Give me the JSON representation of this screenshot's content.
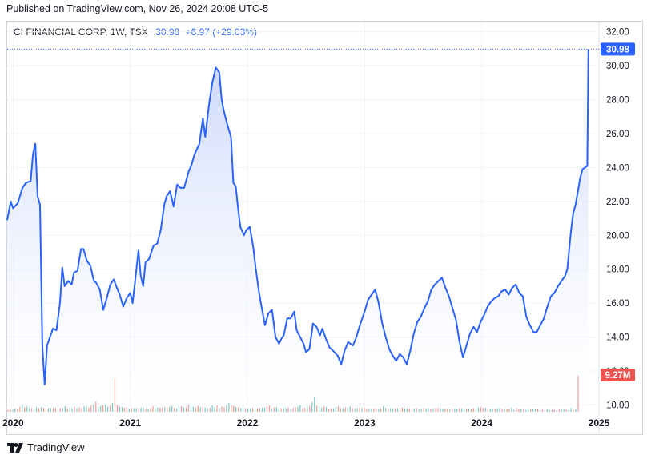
{
  "header": {
    "published": "Published on TradingView.com, Nov 26, 2024 20:08 UTC-5"
  },
  "legend": {
    "symbol": "CI FINANCIAL CORP, 1W, TSX",
    "price": "30.98",
    "change": "+6.97 (+29.03%)"
  },
  "footer": {
    "brand": "TradingView",
    "logo_icon": "tradingview-logo-icon"
  },
  "colors": {
    "line": "#2962ff",
    "area_top": "#cdd9fb",
    "vol_up": "#26a69a",
    "vol_down": "#ef5350",
    "grid": "#f0f3fa"
  },
  "chart_data": {
    "type": "area",
    "title": "CI FINANCIAL CORP, 1W, TSX",
    "y_axis": {
      "ticks": [
        "32.00",
        "30.00",
        "28.00",
        "26.00",
        "24.00",
        "22.00",
        "20.00",
        "18.00",
        "16.00",
        "14.00",
        "12.00",
        "10.00"
      ],
      "ylim": [
        9.5,
        32.6
      ]
    },
    "x_axis": {
      "ticks": [
        "2020",
        "2021",
        "2022",
        "2023",
        "2024",
        "2025"
      ],
      "xlim": [
        2019.95,
        2025.0
      ]
    },
    "last_price_label": "30.98",
    "volume_label": "9.27M",
    "series": [
      {
        "values": [
          [
            2019.95,
            20.9
          ],
          [
            2019.98,
            22.0
          ],
          [
            2020.0,
            21.6
          ],
          [
            2020.04,
            21.9
          ],
          [
            2020.08,
            22.8
          ],
          [
            2020.11,
            23.1
          ],
          [
            2020.15,
            23.2
          ],
          [
            2020.17,
            24.8
          ],
          [
            2020.19,
            25.4
          ],
          [
            2020.21,
            22.3
          ],
          [
            2020.23,
            21.8
          ],
          [
            2020.25,
            13.5
          ],
          [
            2020.27,
            11.2
          ],
          [
            2020.29,
            13.5
          ],
          [
            2020.31,
            13.9
          ],
          [
            2020.34,
            14.5
          ],
          [
            2020.37,
            14.4
          ],
          [
            2020.4,
            16.0
          ],
          [
            2020.42,
            18.1
          ],
          [
            2020.44,
            17.0
          ],
          [
            2020.47,
            17.3
          ],
          [
            2020.5,
            17.1
          ],
          [
            2020.52,
            17.8
          ],
          [
            2020.55,
            17.9
          ],
          [
            2020.58,
            19.2
          ],
          [
            2020.6,
            19.2
          ],
          [
            2020.63,
            18.5
          ],
          [
            2020.66,
            18.2
          ],
          [
            2020.69,
            17.3
          ],
          [
            2020.71,
            17.2
          ],
          [
            2020.74,
            16.8
          ],
          [
            2020.77,
            15.6
          ],
          [
            2020.8,
            16.3
          ],
          [
            2020.83,
            17.1
          ],
          [
            2020.86,
            17.4
          ],
          [
            2020.88,
            17.0
          ],
          [
            2020.91,
            16.5
          ],
          [
            2020.94,
            15.8
          ],
          [
            2020.97,
            16.3
          ],
          [
            2021.0,
            16.6
          ],
          [
            2021.02,
            16.0
          ],
          [
            2021.04,
            17.2
          ],
          [
            2021.07,
            19.1
          ],
          [
            2021.09,
            17.6
          ],
          [
            2021.11,
            17.0
          ],
          [
            2021.13,
            18.4
          ],
          [
            2021.16,
            18.6
          ],
          [
            2021.2,
            19.4
          ],
          [
            2021.23,
            19.5
          ],
          [
            2021.26,
            20.3
          ],
          [
            2021.29,
            21.8
          ],
          [
            2021.31,
            22.3
          ],
          [
            2021.34,
            22.6
          ],
          [
            2021.37,
            21.7
          ],
          [
            2021.4,
            23.0
          ],
          [
            2021.43,
            22.8
          ],
          [
            2021.46,
            22.8
          ],
          [
            2021.5,
            23.8
          ],
          [
            2021.52,
            24.1
          ],
          [
            2021.55,
            24.8
          ],
          [
            2021.59,
            25.4
          ],
          [
            2021.62,
            26.9
          ],
          [
            2021.64,
            25.8
          ],
          [
            2021.67,
            27.6
          ],
          [
            2021.7,
            29.0
          ],
          [
            2021.73,
            29.9
          ],
          [
            2021.76,
            29.6
          ],
          [
            2021.78,
            28.0
          ],
          [
            2021.8,
            27.3
          ],
          [
            2021.83,
            26.5
          ],
          [
            2021.86,
            25.8
          ],
          [
            2021.88,
            23.1
          ],
          [
            2021.9,
            22.9
          ],
          [
            2021.92,
            21.6
          ],
          [
            2021.94,
            20.5
          ],
          [
            2021.97,
            20.0
          ],
          [
            2021.99,
            20.3
          ],
          [
            2022.02,
            20.5
          ],
          [
            2022.05,
            19.3
          ],
          [
            2022.07,
            18.1
          ],
          [
            2022.1,
            16.6
          ],
          [
            2022.12,
            15.8
          ],
          [
            2022.15,
            14.7
          ],
          [
            2022.18,
            15.4
          ],
          [
            2022.21,
            15.6
          ],
          [
            2022.24,
            14.0
          ],
          [
            2022.27,
            13.6
          ],
          [
            2022.29,
            13.9
          ],
          [
            2022.31,
            14.1
          ],
          [
            2022.34,
            15.1
          ],
          [
            2022.37,
            15.1
          ],
          [
            2022.4,
            15.5
          ],
          [
            2022.42,
            14.4
          ],
          [
            2022.45,
            14.0
          ],
          [
            2022.48,
            13.6
          ],
          [
            2022.5,
            13.1
          ],
          [
            2022.53,
            13.3
          ],
          [
            2022.56,
            14.8
          ],
          [
            2022.59,
            14.6
          ],
          [
            2022.62,
            14.1
          ],
          [
            2022.64,
            14.5
          ],
          [
            2022.67,
            13.9
          ],
          [
            2022.7,
            13.4
          ],
          [
            2022.73,
            13.2
          ],
          [
            2022.77,
            12.9
          ],
          [
            2022.8,
            12.4
          ],
          [
            2022.83,
            13.2
          ],
          [
            2022.86,
            13.7
          ],
          [
            2022.9,
            13.5
          ],
          [
            2022.93,
            14.0
          ],
          [
            2022.96,
            14.7
          ],
          [
            2023.0,
            15.5
          ],
          [
            2023.03,
            16.2
          ],
          [
            2023.06,
            16.5
          ],
          [
            2023.09,
            16.8
          ],
          [
            2023.12,
            16.0
          ],
          [
            2023.15,
            14.8
          ],
          [
            2023.18,
            14.0
          ],
          [
            2023.21,
            13.3
          ],
          [
            2023.24,
            12.9
          ],
          [
            2023.27,
            12.6
          ],
          [
            2023.3,
            13.0
          ],
          [
            2023.33,
            12.8
          ],
          [
            2023.36,
            12.4
          ],
          [
            2023.39,
            13.2
          ],
          [
            2023.42,
            14.2
          ],
          [
            2023.45,
            14.9
          ],
          [
            2023.48,
            15.2
          ],
          [
            2023.51,
            15.7
          ],
          [
            2023.54,
            16.1
          ],
          [
            2023.57,
            16.8
          ],
          [
            2023.6,
            17.1
          ],
          [
            2023.63,
            17.3
          ],
          [
            2023.66,
            17.5
          ],
          [
            2023.69,
            16.9
          ],
          [
            2023.72,
            16.4
          ],
          [
            2023.75,
            15.7
          ],
          [
            2023.78,
            15.0
          ],
          [
            2023.81,
            13.7
          ],
          [
            2023.84,
            12.8
          ],
          [
            2023.87,
            13.5
          ],
          [
            2023.9,
            14.2
          ],
          [
            2023.93,
            14.6
          ],
          [
            2023.96,
            14.3
          ],
          [
            2023.99,
            14.9
          ],
          [
            2024.02,
            15.3
          ],
          [
            2024.05,
            15.8
          ],
          [
            2024.08,
            16.1
          ],
          [
            2024.11,
            16.3
          ],
          [
            2024.14,
            16.4
          ],
          [
            2024.17,
            16.7
          ],
          [
            2024.2,
            16.8
          ],
          [
            2024.23,
            16.5
          ],
          [
            2024.26,
            16.9
          ],
          [
            2024.29,
            17.1
          ],
          [
            2024.32,
            16.6
          ],
          [
            2024.35,
            16.4
          ],
          [
            2024.38,
            15.2
          ],
          [
            2024.41,
            14.7
          ],
          [
            2024.44,
            14.3
          ],
          [
            2024.47,
            14.3
          ],
          [
            2024.5,
            14.7
          ],
          [
            2024.53,
            15.1
          ],
          [
            2024.56,
            15.8
          ],
          [
            2024.59,
            16.4
          ],
          [
            2024.62,
            16.6
          ],
          [
            2024.65,
            17.0
          ],
          [
            2024.68,
            17.3
          ],
          [
            2024.71,
            17.6
          ],
          [
            2024.73,
            18.0
          ],
          [
            2024.76,
            20.2
          ],
          [
            2024.78,
            21.3
          ],
          [
            2024.8,
            21.8
          ],
          [
            2024.82,
            22.6
          ],
          [
            2024.84,
            23.4
          ],
          [
            2024.86,
            23.9
          ],
          [
            2024.88,
            24.0
          ],
          [
            2024.9,
            24.1
          ],
          [
            2024.91,
            30.98
          ]
        ]
      }
    ],
    "volume_values": [
      0.5,
      0.6,
      0.4,
      0.9,
      0.7,
      1.3,
      1.8,
      1.1,
      1.4,
      1.1,
      0.9,
      0.8,
      1.2,
      0.9,
      1.2,
      1.0,
      0.8,
      0.9,
      0.9,
      1.0,
      0.9,
      0.8,
      0.9,
      1.0,
      1.4,
      0.8,
      0.9,
      0.9,
      1.3,
      0.9,
      1.0,
      1.0,
      1.4,
      1.5,
      1.0,
      1.7,
      1.9,
      2.6,
      1.3,
      1.5,
      1.7,
      1.9,
      1.3,
      1.7,
      2.3,
      8.6,
      1.8,
      1.3,
      1.2,
      1.0,
      1.2,
      0.8,
      1.0,
      0.9,
      0.9,
      0.8,
      1.1,
      0.9,
      0.7,
      0.6,
      0.9,
      1.4,
      0.9,
      1.1,
      1.0,
      1.0,
      1.2,
      1.1,
      1.3,
      1.5,
      1.0,
      0.9,
      1.4,
      1.4,
      1.1,
      1.1,
      1.8,
      1.5,
      1.3,
      1.0,
      1.5,
      1.2,
      1.3,
      1.1,
      0.8,
      1.1,
      1.6,
      1.2,
      1.6,
      1.0,
      1.4,
      1.2,
      1.7,
      2.3,
      1.8,
      1.5,
      1.2,
      1.3,
      1.0,
      1.2,
      0.9,
      0.8,
      0.9,
      1.0,
      1.1,
      0.9,
      1.0,
      1.0,
      1.1,
      1.4,
      1.6,
      0.8,
      1.1,
      1.2,
      0.8,
      0.9,
      1.0,
      0.9,
      1.1,
      0.8,
      1.0,
      1.2,
      1.3,
      1.8,
      0.8,
      1.0,
      1.3,
      1.5,
      2.5,
      3.9,
      1.6,
      1.4,
      1.1,
      1.4,
      1.2,
      0.7,
      0.9,
      0.8,
      1.3,
      1.4,
      0.9,
      1.0,
      1.1,
      1.1,
      1.3,
      0.9,
      0.8,
      0.9,
      1.1,
      0.9,
      1.0,
      0.7,
      0.8,
      0.7,
      0.8,
      0.7,
      0.7,
      0.8,
      1.5,
      1.0,
      0.8,
      0.8,
      0.8,
      0.9,
      0.9,
      0.9,
      1.1,
      0.8,
      0.9,
      0.8,
      0.6,
      0.8,
      0.9,
      0.7,
      0.7,
      0.9,
      0.9,
      0.9,
      0.6,
      0.9,
      0.9,
      1.0,
      0.8,
      0.7,
      0.7,
      0.7,
      0.6,
      0.8,
      0.8,
      0.7,
      0.9,
      0.8,
      0.6,
      0.7,
      0.7,
      0.6,
      0.9,
      0.7,
      1.1,
      1.2,
      0.9,
      1.0,
      0.8,
      0.8,
      0.7,
      0.7,
      0.9,
      0.9,
      0.7,
      0.6,
      0.7,
      0.7,
      1.2,
      0.5,
      0.9,
      0.6,
      0.6,
      0.7,
      0.5,
      0.7,
      0.6,
      0.7,
      0.8,
      0.7,
      0.5,
      0.6,
      0.5,
      0.6,
      0.4,
      0.5,
      0.5,
      0.4,
      0.7,
      0.5,
      0.6,
      0.6,
      0.5,
      1.0,
      0.5,
      0.6,
      9.27
    ]
  }
}
